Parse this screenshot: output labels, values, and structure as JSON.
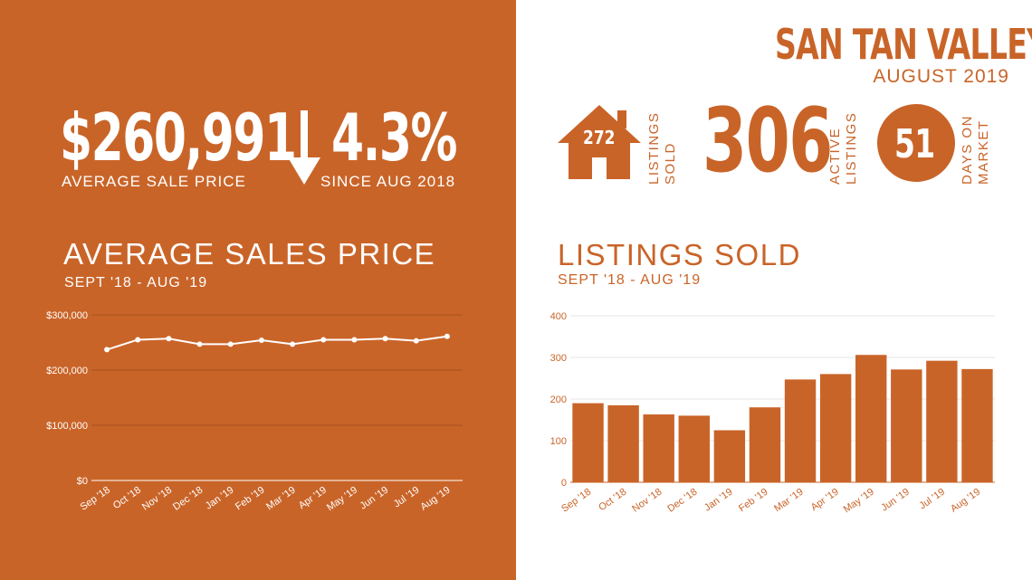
{
  "header": {
    "city": "SAN TAN VALLEY",
    "period": "AUGUST 2019"
  },
  "kpis": {
    "avg_price": "$260,991",
    "avg_price_label": "AVERAGE  SALE PRICE",
    "change_pct": "4.3%",
    "change_label": "SINCE AUG 2018",
    "listings_sold": "272",
    "listings_sold_line1": "LISTINGS",
    "listings_sold_line2": "SOLD",
    "active_listings": "306",
    "active_line1": "ACTIVE",
    "active_line2": "LISTINGS",
    "days_on_market": "51",
    "dom_line1": "DAYS ON",
    "dom_line2": "MARKET"
  },
  "colors": {
    "brand": "#C96428",
    "white": "#ffffff"
  },
  "icons": [
    "arrow-down-icon",
    "house-icon",
    "circle-badge-icon"
  ],
  "chart_data": [
    {
      "type": "line",
      "title": "AVERAGE SALES PRICE",
      "subtitle": "SEPT '18 - AUG '19",
      "categories": [
        "Sep '18",
        "Oct '18",
        "Nov '18",
        "Dec '18",
        "Jan '19",
        "Feb '19",
        "Mar '19",
        "Apr '19",
        "May '19",
        "Jun '19",
        "Jul '19",
        "Aug '19"
      ],
      "values": [
        237000,
        255000,
        257000,
        247000,
        247000,
        254000,
        247000,
        255000,
        255000,
        257000,
        253000,
        261000
      ],
      "y_ticks": [
        "$0",
        "$100,000",
        "$200,000",
        "$300,000"
      ],
      "ylim": [
        0,
        300000
      ],
      "grid": true
    },
    {
      "type": "bar",
      "title": "LISTINGS SOLD",
      "subtitle": "SEPT '18 - AUG '19",
      "categories": [
        "Sep '18",
        "Oct '18",
        "Nov '18",
        "Dec '18",
        "Jan '19",
        "Feb '19",
        "Mar '19",
        "Apr '19",
        "May '19",
        "Jun '19",
        "Jul '19",
        "Aug '19"
      ],
      "values": [
        190,
        185,
        163,
        160,
        125,
        180,
        247,
        260,
        306,
        271,
        292,
        272
      ],
      "y_ticks": [
        "0",
        "100",
        "200",
        "300",
        "400"
      ],
      "ylim": [
        0,
        400
      ],
      "grid": true
    }
  ]
}
